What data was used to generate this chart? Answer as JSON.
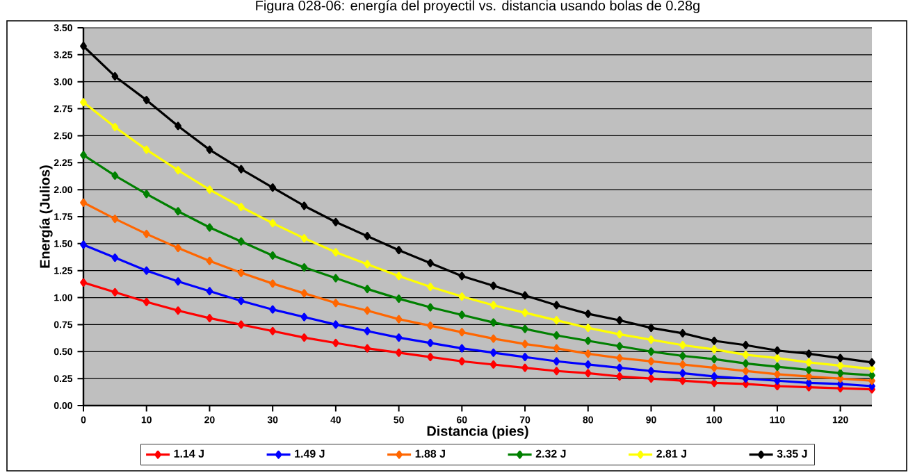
{
  "chart_data": {
    "type": "line",
    "title": "Figura 028-06: energía del proyectil vs. distancia usando bolas de 0.28g",
    "xlabel": "Distancia (pies)",
    "ylabel": "Energía (Julios)",
    "x": [
      0,
      5,
      10,
      15,
      20,
      25,
      30,
      35,
      40,
      45,
      50,
      55,
      60,
      65,
      70,
      75,
      80,
      85,
      90,
      95,
      100,
      105,
      110,
      115,
      120,
      125
    ],
    "series": [
      {
        "name": "1.14 J",
        "color": "#ff0000",
        "values": [
          1.14,
          1.05,
          0.96,
          0.88,
          0.81,
          0.75,
          0.69,
          0.63,
          0.58,
          0.53,
          0.49,
          0.45,
          0.41,
          0.38,
          0.35,
          0.32,
          0.3,
          0.27,
          0.25,
          0.23,
          0.21,
          0.2,
          0.18,
          0.17,
          0.16,
          0.15
        ]
      },
      {
        "name": "1.49 J",
        "color": "#0000ff",
        "values": [
          1.49,
          1.37,
          1.25,
          1.15,
          1.06,
          0.97,
          0.89,
          0.82,
          0.75,
          0.69,
          0.63,
          0.58,
          0.53,
          0.49,
          0.45,
          0.41,
          0.38,
          0.35,
          0.32,
          0.3,
          0.27,
          0.25,
          0.23,
          0.21,
          0.2,
          0.18
        ]
      },
      {
        "name": "1.88 J",
        "color": "#ff6600",
        "values": [
          1.88,
          1.73,
          1.59,
          1.46,
          1.34,
          1.23,
          1.13,
          1.04,
          0.95,
          0.88,
          0.8,
          0.74,
          0.68,
          0.62,
          0.57,
          0.53,
          0.48,
          0.44,
          0.41,
          0.38,
          0.35,
          0.32,
          0.29,
          0.27,
          0.25,
          0.23
        ]
      },
      {
        "name": "2.32 J",
        "color": "#008000",
        "values": [
          2.32,
          2.13,
          1.96,
          1.8,
          1.65,
          1.52,
          1.39,
          1.28,
          1.18,
          1.08,
          0.99,
          0.91,
          0.84,
          0.77,
          0.71,
          0.65,
          0.6,
          0.55,
          0.5,
          0.46,
          0.43,
          0.39,
          0.36,
          0.33,
          0.3,
          0.28
        ]
      },
      {
        "name": "2.81 J",
        "color": "#ffff00",
        "values": [
          2.81,
          2.58,
          2.37,
          2.18,
          2.0,
          1.84,
          1.69,
          1.55,
          1.42,
          1.31,
          1.2,
          1.1,
          1.01,
          0.93,
          0.86,
          0.79,
          0.72,
          0.66,
          0.61,
          0.56,
          0.52,
          0.47,
          0.44,
          0.4,
          0.37,
          0.34
        ]
      },
      {
        "name": "3.35 J",
        "color": "#000000",
        "values": [
          3.33,
          3.05,
          2.83,
          2.59,
          2.37,
          2.19,
          2.02,
          1.85,
          1.7,
          1.57,
          1.44,
          1.32,
          1.2,
          1.11,
          1.02,
          0.93,
          0.85,
          0.79,
          0.72,
          0.67,
          0.6,
          0.56,
          0.51,
          0.48,
          0.44,
          0.4
        ]
      }
    ],
    "xlim": [
      0,
      125
    ],
    "xticks": [
      0,
      10,
      20,
      30,
      40,
      50,
      60,
      70,
      80,
      90,
      100,
      110,
      120
    ],
    "ylim": [
      0,
      3.5
    ],
    "yticks": [
      {
        "value": 0,
        "label": "0.00"
      },
      {
        "value": 0.25,
        "label": "0.25"
      },
      {
        "value": 0.5,
        "label": "0.50"
      },
      {
        "value": 0.75,
        "label": "0.75"
      },
      {
        "value": 1,
        "label": "1.00"
      },
      {
        "value": 1.25,
        "label": "1.25"
      },
      {
        "value": 1.5,
        "label": "1.50"
      },
      {
        "value": 1.75,
        "label": "1.75"
      },
      {
        "value": 2,
        "label": "2.00"
      },
      {
        "value": 2.25,
        "label": "2.25"
      },
      {
        "value": 2.5,
        "label": "2.50"
      },
      {
        "value": 2.75,
        "label": "2.75"
      },
      {
        "value": 3,
        "label": "3.00"
      },
      {
        "value": 3.25,
        "label": "3.25"
      },
      {
        "value": 3.5,
        "label": "3.50"
      }
    ],
    "grid": "y",
    "legend": "bottom",
    "marker": "diamond",
    "line_style": "solid"
  }
}
